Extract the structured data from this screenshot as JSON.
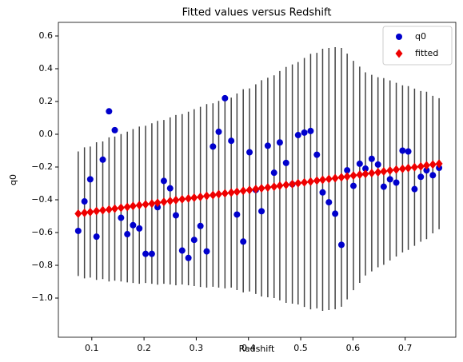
{
  "chart_data": {
    "type": "scatter",
    "title": "Fitted values versus Redshift",
    "x_label": "Redshift",
    "y_label": "q0",
    "x": [
      0.074,
      0.086,
      0.097,
      0.109,
      0.121,
      0.133,
      0.144,
      0.156,
      0.168,
      0.179,
      0.191,
      0.203,
      0.215,
      0.226,
      0.238,
      0.25,
      0.261,
      0.273,
      0.285,
      0.296,
      0.308,
      0.32,
      0.332,
      0.343,
      0.355,
      0.367,
      0.378,
      0.39,
      0.402,
      0.414,
      0.425,
      0.437,
      0.449,
      0.46,
      0.472,
      0.484,
      0.495,
      0.507,
      0.519,
      0.531,
      0.542,
      0.554,
      0.566,
      0.578,
      0.589,
      0.601,
      0.613,
      0.624,
      0.636,
      0.648,
      0.659,
      0.671,
      0.683,
      0.695,
      0.706,
      0.718,
      0.73,
      0.741,
      0.753,
      0.765
    ],
    "series": [
      {
        "name": "q0",
        "color": "#0000cc",
        "marker": "circle",
        "values": [
          -0.59,
          -0.41,
          -0.275,
          -0.625,
          -0.155,
          0.14,
          0.025,
          -0.51,
          -0.61,
          -0.555,
          -0.575,
          -0.73,
          -0.73,
          -0.445,
          -0.285,
          -0.33,
          -0.495,
          -0.71,
          -0.755,
          -0.645,
          -0.56,
          -0.715,
          -0.075,
          0.015,
          0.22,
          -0.04,
          -0.49,
          -0.655,
          -0.11,
          -0.34,
          -0.47,
          -0.07,
          -0.235,
          -0.05,
          -0.175,
          -0.305,
          -0.005,
          0.01,
          0.02,
          -0.125,
          -0.355,
          -0.415,
          -0.485,
          -0.675,
          -0.22,
          -0.315,
          -0.18,
          -0.21,
          -0.15,
          -0.185,
          -0.32,
          -0.275,
          -0.295,
          -0.1,
          -0.105,
          -0.335,
          -0.26,
          -0.22,
          -0.25,
          -0.205
        ]
      },
      {
        "name": "fitted",
        "color": "#ee0000",
        "marker": "diamond",
        "error_color": "#444444",
        "values": [
          -0.485,
          -0.48,
          -0.475,
          -0.469,
          -0.464,
          -0.459,
          -0.454,
          -0.449,
          -0.444,
          -0.438,
          -0.433,
          -0.428,
          -0.423,
          -0.418,
          -0.413,
          -0.407,
          -0.402,
          -0.397,
          -0.392,
          -0.387,
          -0.382,
          -0.376,
          -0.371,
          -0.366,
          -0.361,
          -0.356,
          -0.351,
          -0.345,
          -0.34,
          -0.335,
          -0.33,
          -0.325,
          -0.32,
          -0.314,
          -0.309,
          -0.304,
          -0.299,
          -0.294,
          -0.289,
          -0.283,
          -0.278,
          -0.273,
          -0.268,
          -0.263,
          -0.258,
          -0.252,
          -0.247,
          -0.242,
          -0.237,
          -0.232,
          -0.227,
          -0.221,
          -0.216,
          -0.211,
          -0.206,
          -0.201,
          -0.196,
          -0.19,
          -0.185,
          -0.18
        ],
        "errors": [
          0.38,
          0.4,
          0.4,
          0.42,
          0.42,
          0.44,
          0.44,
          0.45,
          0.46,
          0.47,
          0.48,
          0.48,
          0.49,
          0.5,
          0.5,
          0.51,
          0.52,
          0.52,
          0.53,
          0.54,
          0.55,
          0.56,
          0.56,
          0.57,
          0.58,
          0.58,
          0.6,
          0.62,
          0.62,
          0.64,
          0.66,
          0.67,
          0.68,
          0.7,
          0.72,
          0.73,
          0.74,
          0.76,
          0.78,
          0.78,
          0.8,
          0.8,
          0.8,
          0.79,
          0.75,
          0.7,
          0.66,
          0.62,
          0.6,
          0.58,
          0.57,
          0.55,
          0.53,
          0.51,
          0.5,
          0.48,
          0.46,
          0.45,
          0.42,
          0.4
        ]
      }
    ],
    "xlim": [
      0.036,
      0.797
    ],
    "ylim": [
      -1.239,
      0.683
    ],
    "xticks": [
      0.1,
      0.2,
      0.3,
      0.4,
      0.5,
      0.6,
      0.7
    ],
    "yticks": [
      {
        "value": -1.0,
        "label": "−1.0"
      },
      {
        "value": -0.8,
        "label": "−0.8"
      },
      {
        "value": -0.6,
        "label": "−0.6"
      },
      {
        "value": -0.4,
        "label": "−0.4"
      },
      {
        "value": -0.2,
        "label": "−0.2"
      },
      {
        "value": 0.0,
        "label": "0.0"
      },
      0.2,
      0.4,
      0.6
    ],
    "legend": "upper right"
  }
}
